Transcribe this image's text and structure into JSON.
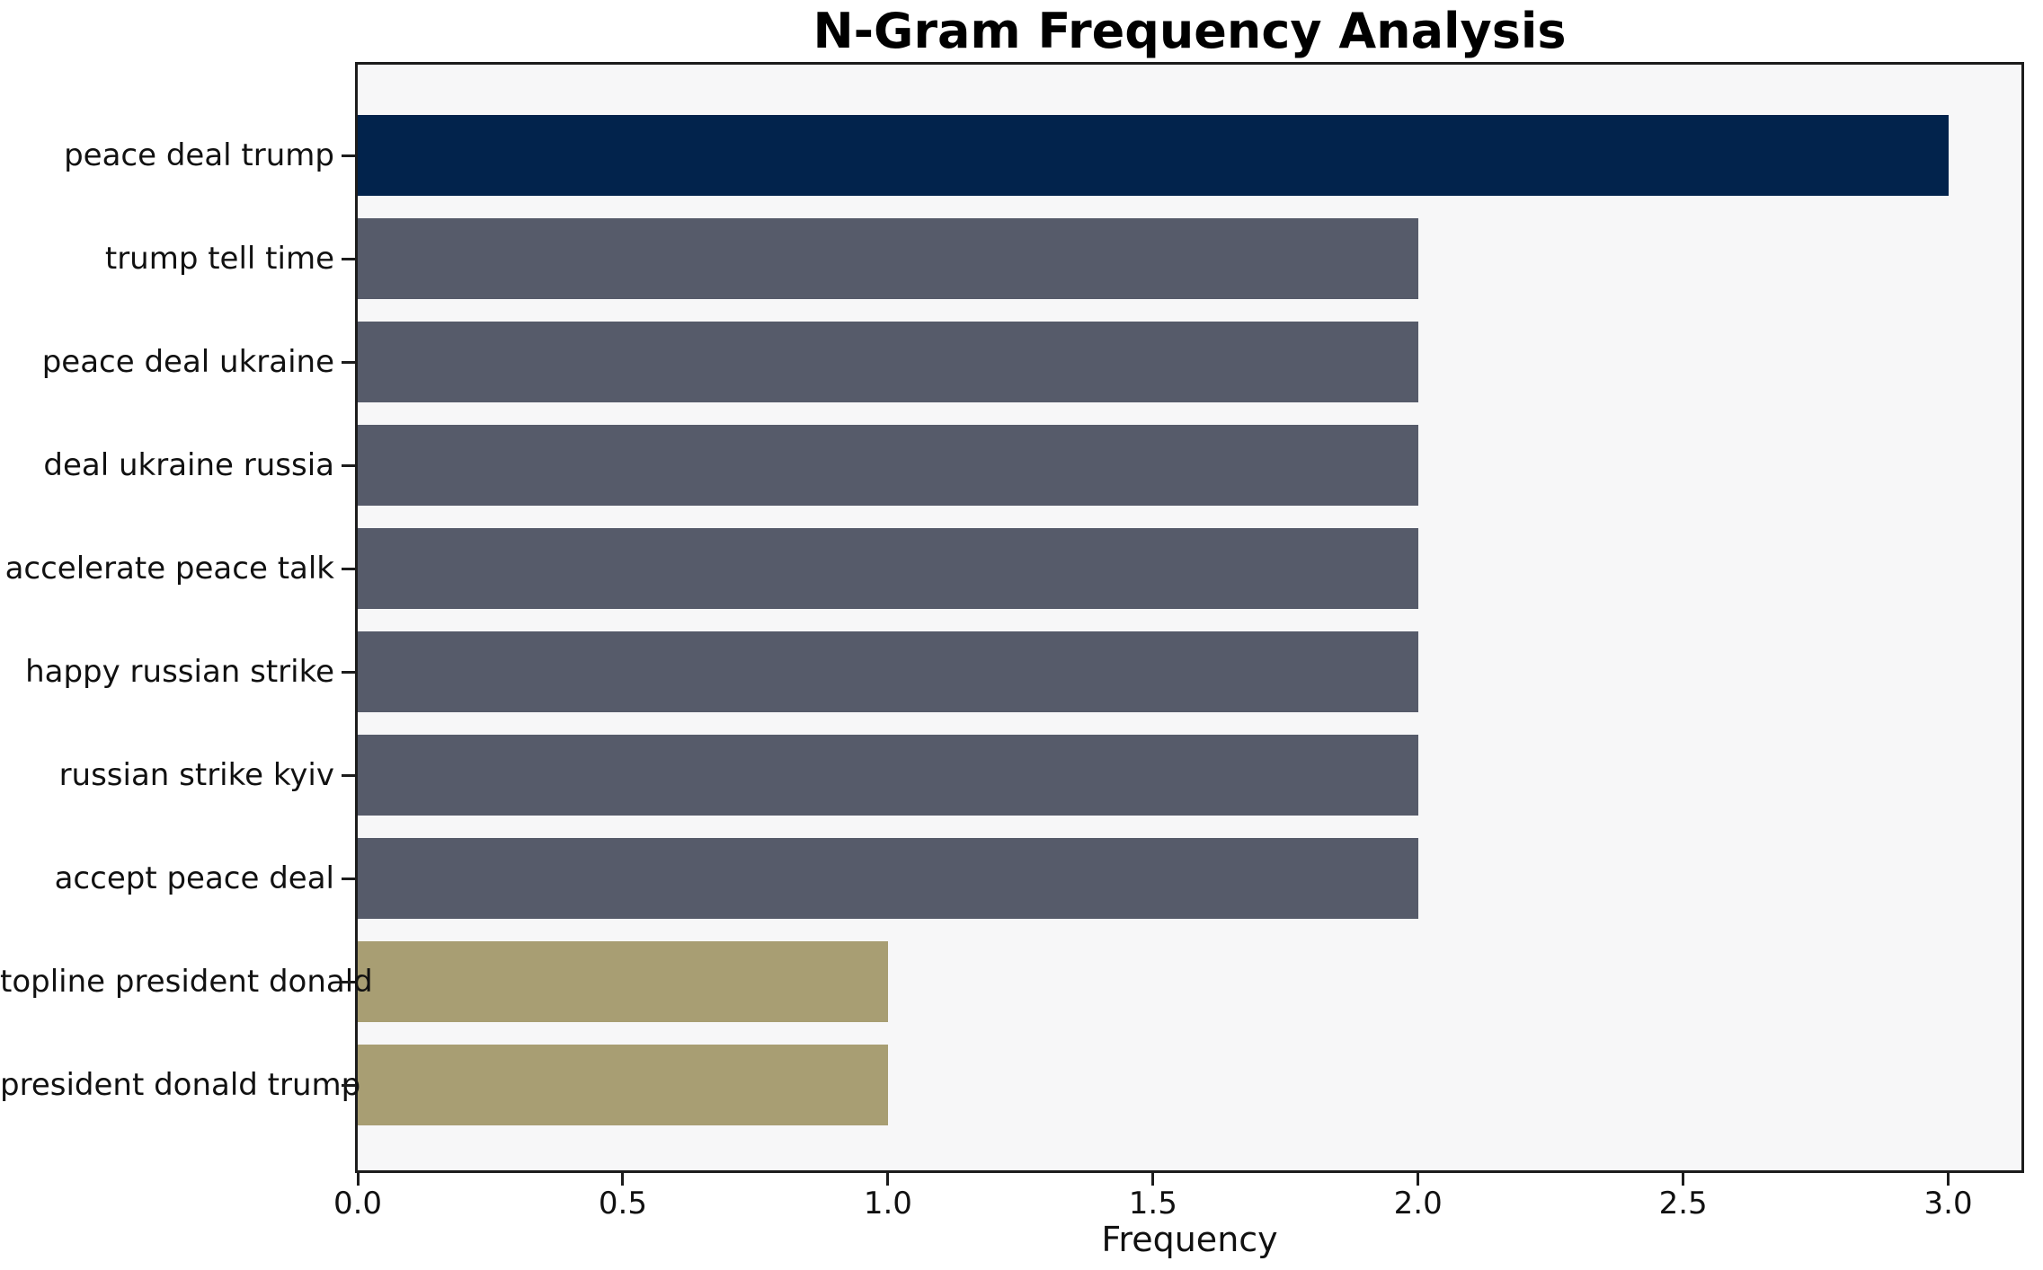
{
  "title": "N-Gram Frequency Analysis",
  "chart_data": {
    "type": "bar",
    "orientation": "horizontal",
    "title": "N-Gram Frequency Analysis",
    "xlabel": "Frequency",
    "ylabel": "",
    "categories": [
      "peace deal trump",
      "trump tell time",
      "peace deal ukraine",
      "deal ukraine russia",
      "accelerate peace talk",
      "happy russian strike",
      "russian strike kyiv",
      "accept peace deal",
      "topline president donald",
      "president donald trump"
    ],
    "values": [
      3,
      2,
      2,
      2,
      2,
      2,
      2,
      2,
      1,
      1
    ],
    "bar_colors": [
      "#02234c",
      "#565b6a",
      "#565b6a",
      "#565b6a",
      "#565b6a",
      "#565b6a",
      "#565b6a",
      "#565b6a",
      "#a89e73",
      "#a89e73"
    ],
    "xlim": [
      0,
      3.138
    ],
    "xticks": [
      0.0,
      0.5,
      1.0,
      1.5,
      2.0,
      2.5,
      3.0
    ],
    "xtick_labels": [
      "0.0",
      "0.5",
      "1.0",
      "1.5",
      "2.0",
      "2.5",
      "3.0"
    ],
    "grid": false,
    "legend": null,
    "colors": {
      "highlight": "#02234c",
      "mid": "#565b6a",
      "low": "#a89e73",
      "plot_background": "#f7f7f8",
      "figure_background": "#ffffff",
      "axis": "#1c1c1c",
      "text": "#111111"
    }
  }
}
